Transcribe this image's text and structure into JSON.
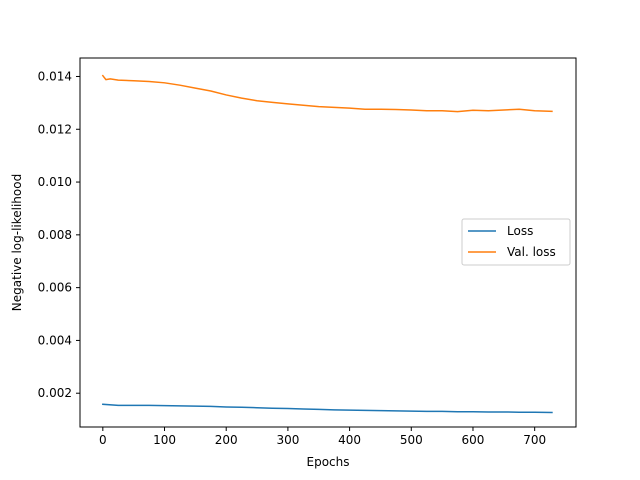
{
  "chart_data": {
    "type": "line",
    "title": "",
    "xlabel": "Epochs",
    "ylabel": "Negative log-likelihood",
    "xlim": [
      -37,
      767
    ],
    "ylim": [
      0.00072,
      0.0147
    ],
    "x_ticks": [
      0,
      100,
      200,
      300,
      400,
      500,
      600,
      700
    ],
    "x_tick_labels": [
      "0",
      "100",
      "200",
      "300",
      "400",
      "500",
      "600",
      "700"
    ],
    "y_ticks": [
      0.002,
      0.004,
      0.006,
      0.008,
      0.01,
      0.012,
      0.014
    ],
    "y_tick_labels": [
      "0.002",
      "0.004",
      "0.006",
      "0.008",
      "0.010",
      "0.012",
      "0.014"
    ],
    "grid": false,
    "legend_position": "center-right",
    "series": [
      {
        "name": "Loss",
        "color": "#1f77b4",
        "x": [
          0,
          25,
          50,
          75,
          100,
          125,
          150,
          175,
          200,
          225,
          250,
          275,
          300,
          325,
          350,
          375,
          400,
          425,
          450,
          475,
          500,
          525,
          550,
          575,
          600,
          625,
          650,
          675,
          700,
          728
        ],
        "values": [
          0.00158,
          0.00154,
          0.00154,
          0.00154,
          0.00153,
          0.00152,
          0.00151,
          0.0015,
          0.00148,
          0.00147,
          0.00145,
          0.00143,
          0.00142,
          0.0014,
          0.00139,
          0.00137,
          0.00136,
          0.00135,
          0.00134,
          0.00133,
          0.00132,
          0.00131,
          0.00131,
          0.0013,
          0.0013,
          0.00129,
          0.00129,
          0.00128,
          0.00128,
          0.00127
        ]
      },
      {
        "name": "Val. loss",
        "color": "#ff7f0e",
        "x": [
          0,
          5,
          12,
          25,
          50,
          75,
          100,
          125,
          150,
          175,
          200,
          225,
          250,
          275,
          300,
          325,
          350,
          375,
          400,
          425,
          450,
          475,
          500,
          525,
          550,
          575,
          600,
          625,
          650,
          675,
          700,
          728
        ],
        "values": [
          0.01403,
          0.01388,
          0.01391,
          0.01386,
          0.01384,
          0.01381,
          0.01376,
          0.01367,
          0.01356,
          0.01345,
          0.0133,
          0.01318,
          0.01308,
          0.01302,
          0.01296,
          0.01291,
          0.01286,
          0.01283,
          0.0128,
          0.01276,
          0.01276,
          0.01275,
          0.01273,
          0.0127,
          0.0127,
          0.01267,
          0.01272,
          0.0127,
          0.01273,
          0.01276,
          0.0127,
          0.01268
        ]
      }
    ]
  }
}
